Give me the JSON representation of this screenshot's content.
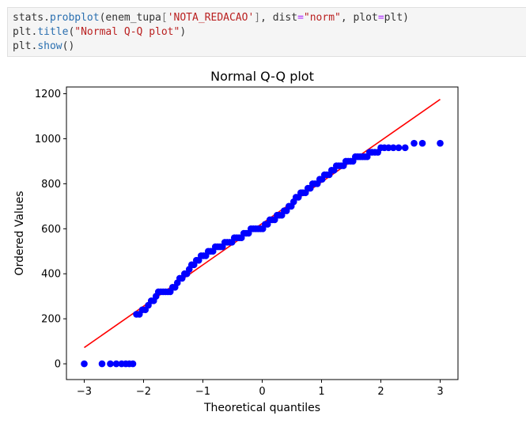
{
  "code_cell": {
    "line1": {
      "obj": "stats",
      "dot": ".",
      "fn": "probplot",
      "open": "(enem_tupa",
      "br_open": "[",
      "str1": "'NOTA_REDACAO'",
      "br_close": "]",
      "sep1": ", dist",
      "eq1": "=",
      "str2": "\"norm\"",
      "sep2": ", plot",
      "eq2": "=",
      "arg": "plt)"
    },
    "line2": {
      "obj": "plt",
      "dot": ".",
      "fn": "title",
      "open": "(",
      "str": "\"Normal Q-Q plot\"",
      "close": ")"
    },
    "line3": {
      "obj": "plt",
      "dot": ".",
      "fn": "show",
      "args": "()"
    }
  },
  "chart_data": {
    "type": "scatter",
    "title": "Normal Q-Q plot",
    "xlabel": "Theoretical quantiles",
    "ylabel": "Ordered Values",
    "xlim": [
      -3.3,
      3.3
    ],
    "ylim": [
      -70,
      1230
    ],
    "xticks": [
      -3,
      -2,
      -1,
      0,
      1,
      2,
      3
    ],
    "xtick_labels": [
      "−3",
      "−2",
      "−1",
      "0",
      "1",
      "2",
      "3"
    ],
    "yticks": [
      0,
      200,
      400,
      600,
      800,
      1000,
      1200
    ],
    "ytick_labels": [
      "0",
      "200",
      "400",
      "600",
      "800",
      "1000",
      "1200"
    ],
    "grid": false,
    "point_color": "#0000ff",
    "line_color": "#ff0000",
    "fit_line": {
      "x": [
        -3.0,
        3.0
      ],
      "y": [
        72,
        1175
      ]
    },
    "points": [
      [
        -3.0,
        0
      ],
      [
        -2.7,
        0
      ],
      [
        -2.56,
        0
      ],
      [
        -2.46,
        0
      ],
      [
        -2.37,
        0
      ],
      [
        -2.3,
        0
      ],
      [
        -2.24,
        0
      ],
      [
        -2.18,
        0
      ],
      [
        -2.12,
        220
      ],
      [
        -2.07,
        220
      ],
      [
        -2.02,
        240
      ],
      [
        -1.97,
        240
      ],
      [
        -1.92,
        260
      ],
      [
        -1.87,
        280
      ],
      [
        -1.83,
        280
      ],
      [
        -1.79,
        300
      ],
      [
        -1.75,
        320
      ],
      [
        -1.71,
        320
      ],
      [
        -1.67,
        320
      ],
      [
        -1.63,
        320
      ],
      [
        -1.59,
        320
      ],
      [
        -1.55,
        320
      ],
      [
        -1.51,
        340
      ],
      [
        -1.47,
        340
      ],
      [
        -1.43,
        360
      ],
      [
        -1.39,
        380
      ],
      [
        -1.35,
        380
      ],
      [
        -1.31,
        400
      ],
      [
        -1.27,
        400
      ],
      [
        -1.23,
        420
      ],
      [
        -1.19,
        440
      ],
      [
        -1.15,
        440
      ],
      [
        -1.11,
        460
      ],
      [
        -1.07,
        460
      ],
      [
        -1.03,
        480
      ],
      [
        -0.99,
        480
      ],
      [
        -0.95,
        480
      ],
      [
        -0.91,
        500
      ],
      [
        -0.87,
        500
      ],
      [
        -0.83,
        500
      ],
      [
        -0.79,
        520
      ],
      [
        -0.75,
        520
      ],
      [
        -0.71,
        520
      ],
      [
        -0.67,
        520
      ],
      [
        -0.63,
        540
      ],
      [
        -0.59,
        540
      ],
      [
        -0.55,
        540
      ],
      [
        -0.51,
        540
      ],
      [
        -0.47,
        560
      ],
      [
        -0.43,
        560
      ],
      [
        -0.39,
        560
      ],
      [
        -0.35,
        560
      ],
      [
        -0.31,
        580
      ],
      [
        -0.27,
        580
      ],
      [
        -0.23,
        580
      ],
      [
        -0.19,
        600
      ],
      [
        -0.15,
        600
      ],
      [
        -0.11,
        600
      ],
      [
        -0.07,
        600
      ],
      [
        -0.03,
        600
      ],
      [
        0.01,
        600
      ],
      [
        0.05,
        620
      ],
      [
        0.09,
        620
      ],
      [
        0.13,
        640
      ],
      [
        0.17,
        640
      ],
      [
        0.21,
        640
      ],
      [
        0.25,
        660
      ],
      [
        0.29,
        660
      ],
      [
        0.33,
        660
      ],
      [
        0.37,
        680
      ],
      [
        0.41,
        680
      ],
      [
        0.45,
        700
      ],
      [
        0.49,
        700
      ],
      [
        0.53,
        720
      ],
      [
        0.57,
        740
      ],
      [
        0.61,
        740
      ],
      [
        0.65,
        760
      ],
      [
        0.69,
        760
      ],
      [
        0.73,
        760
      ],
      [
        0.77,
        780
      ],
      [
        0.81,
        780
      ],
      [
        0.85,
        800
      ],
      [
        0.89,
        800
      ],
      [
        0.93,
        800
      ],
      [
        0.97,
        820
      ],
      [
        1.01,
        820
      ],
      [
        1.05,
        840
      ],
      [
        1.09,
        840
      ],
      [
        1.13,
        840
      ],
      [
        1.17,
        860
      ],
      [
        1.21,
        860
      ],
      [
        1.25,
        880
      ],
      [
        1.29,
        880
      ],
      [
        1.33,
        880
      ],
      [
        1.37,
        880
      ],
      [
        1.41,
        900
      ],
      [
        1.45,
        900
      ],
      [
        1.49,
        900
      ],
      [
        1.53,
        900
      ],
      [
        1.57,
        920
      ],
      [
        1.61,
        920
      ],
      [
        1.65,
        920
      ],
      [
        1.69,
        920
      ],
      [
        1.73,
        920
      ],
      [
        1.77,
        920
      ],
      [
        1.81,
        940
      ],
      [
        1.85,
        940
      ],
      [
        1.9,
        940
      ],
      [
        1.95,
        940
      ],
      [
        2.0,
        960
      ],
      [
        2.06,
        960
      ],
      [
        2.13,
        960
      ],
      [
        2.21,
        960
      ],
      [
        2.3,
        960
      ],
      [
        2.41,
        960
      ],
      [
        2.56,
        980
      ],
      [
        2.7,
        980
      ],
      [
        3.0,
        980
      ]
    ]
  }
}
